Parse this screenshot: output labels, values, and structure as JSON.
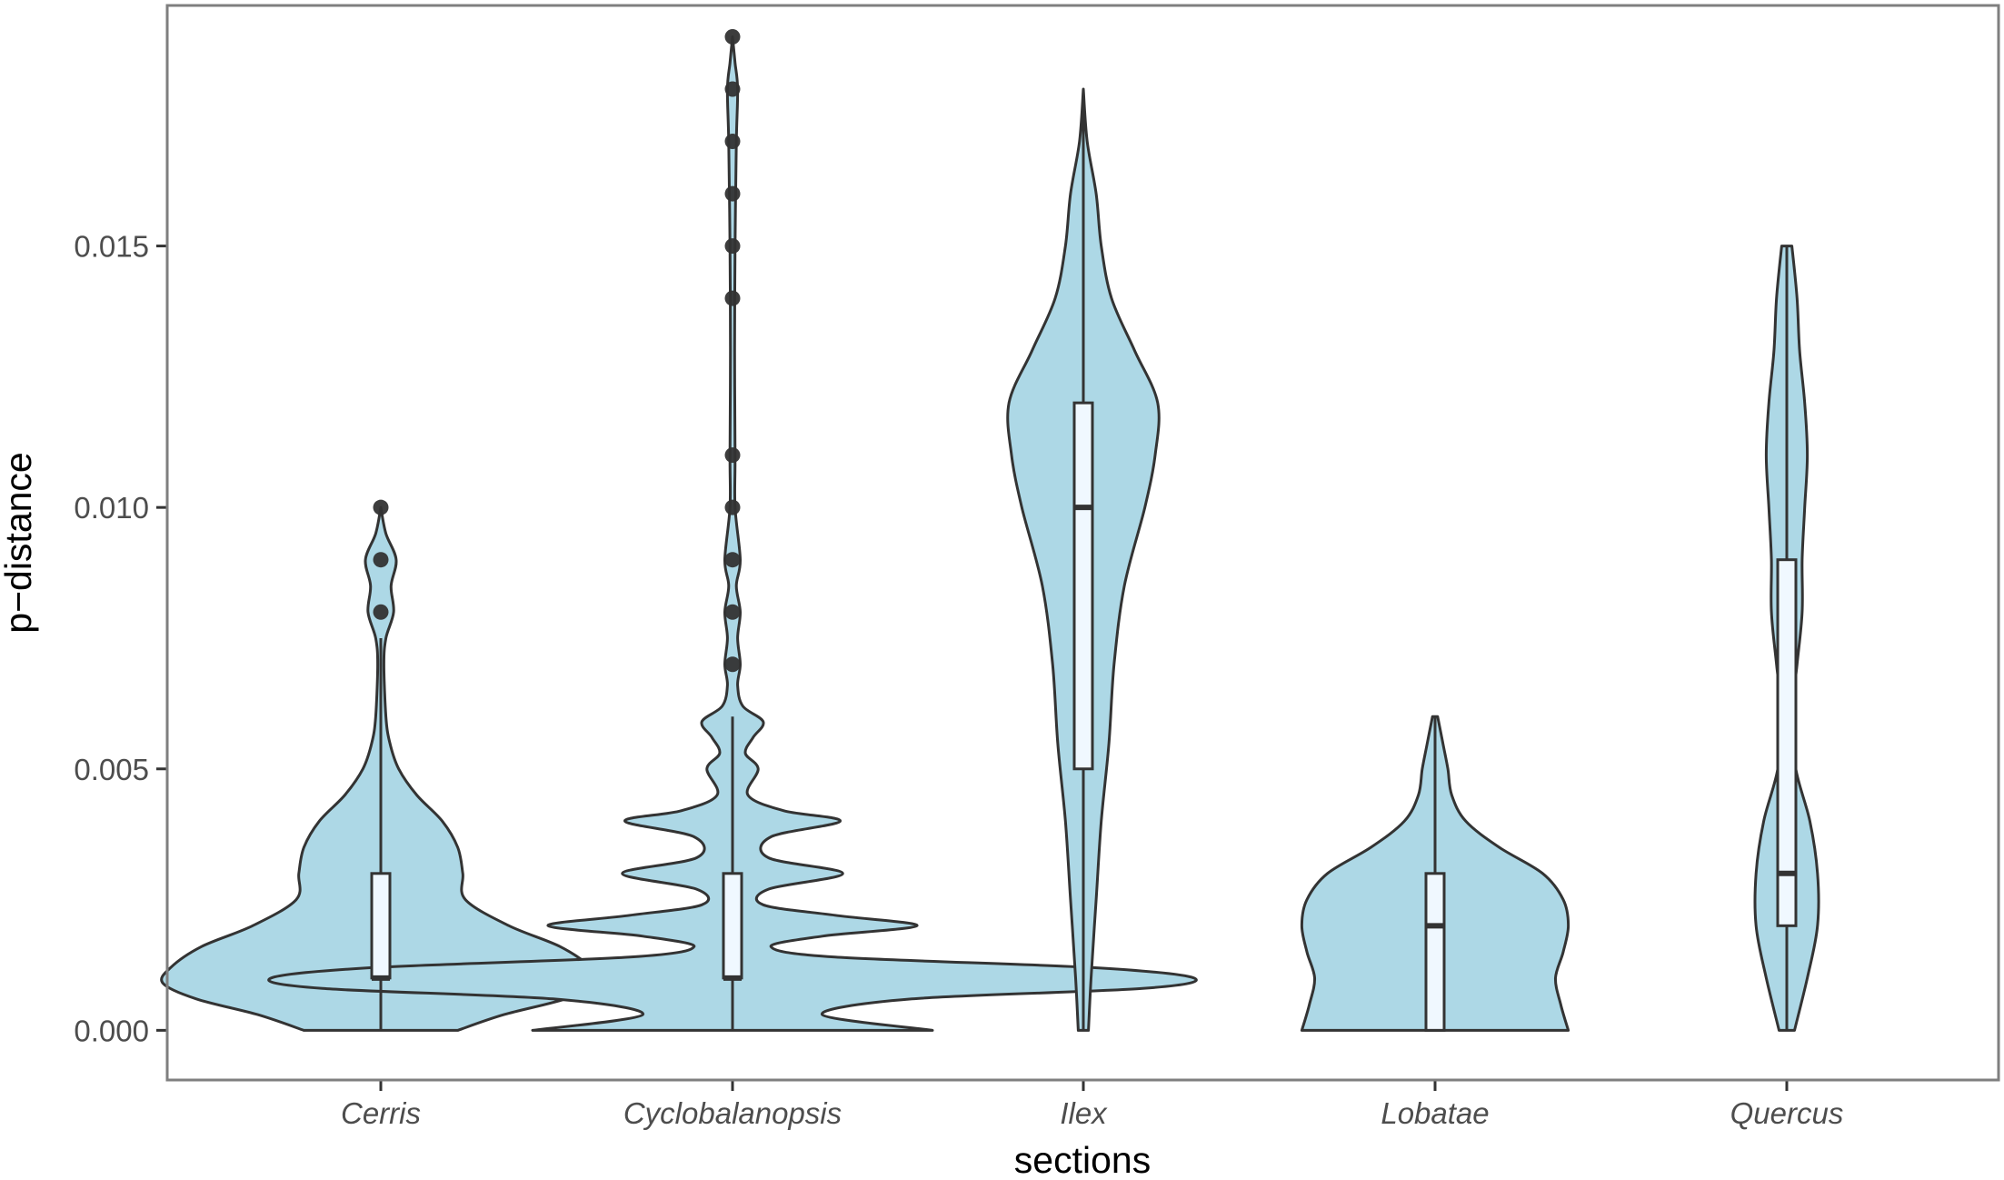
{
  "chart_data": {
    "type": "violin",
    "title": "",
    "xlabel": "sections",
    "ylabel": "p−distance",
    "categories": [
      "Cerris",
      "Cyclobalanopsis",
      "Ilex",
      "Lobatae",
      "Quercus"
    ],
    "y_ticks": [
      0.0,
      0.005,
      0.01,
      0.015
    ],
    "y_tick_labels": [
      "0.000",
      "0.005",
      "0.010",
      "0.015"
    ],
    "ylim": [
      -0.00095,
      0.0196
    ],
    "grid": false,
    "legend": "none",
    "colors": {
      "fill": "#add8e6",
      "stroke": "#333333",
      "box_fill": "#f0f8ff",
      "panel_border": "#7f7f7f"
    },
    "groups": [
      {
        "name": "Cerris",
        "box": {
          "lower_whisker": 0.0,
          "q1": 0.001,
          "median": 0.001,
          "q3": 0.003,
          "upper_whisker": 0.0075
        },
        "outliers": [
          0.008,
          0.009,
          0.01
        ],
        "density": [
          [
            0.0,
            0.3
          ],
          [
            0.0003,
            0.48
          ],
          [
            0.0006,
            0.72
          ],
          [
            0.0009,
            0.85
          ],
          [
            0.0012,
            0.82
          ],
          [
            0.0016,
            0.7
          ],
          [
            0.002,
            0.5
          ],
          [
            0.0025,
            0.33
          ],
          [
            0.003,
            0.32
          ],
          [
            0.0035,
            0.3
          ],
          [
            0.004,
            0.24
          ],
          [
            0.0045,
            0.14
          ],
          [
            0.005,
            0.07
          ],
          [
            0.0055,
            0.035
          ],
          [
            0.006,
            0.02
          ],
          [
            0.007,
            0.012
          ],
          [
            0.0075,
            0.02
          ],
          [
            0.008,
            0.05
          ],
          [
            0.0085,
            0.04
          ],
          [
            0.009,
            0.06
          ],
          [
            0.0095,
            0.02
          ],
          [
            0.01,
            0.0
          ]
        ]
      },
      {
        "name": "Cyclobalanopsis",
        "box": {
          "lower_whisker": 0.0,
          "q1": 0.001,
          "median": 0.001,
          "q3": 0.003,
          "upper_whisker": 0.006
        },
        "outliers": [
          0.007,
          0.008,
          0.009,
          0.01,
          0.011,
          0.014,
          0.015,
          0.016,
          0.017,
          0.018,
          0.019
        ],
        "density": [
          [
            0.0,
            0.78
          ],
          [
            0.0003,
            0.35
          ],
          [
            0.0006,
            0.7
          ],
          [
            0.0008,
            1.6
          ],
          [
            0.001,
            1.8
          ],
          [
            0.0012,
            1.4
          ],
          [
            0.0014,
            0.4
          ],
          [
            0.0016,
            0.15
          ],
          [
            0.0018,
            0.35
          ],
          [
            0.002,
            0.72
          ],
          [
            0.0022,
            0.4
          ],
          [
            0.0024,
            0.12
          ],
          [
            0.0027,
            0.14
          ],
          [
            0.003,
            0.43
          ],
          [
            0.0033,
            0.14
          ],
          [
            0.0037,
            0.15
          ],
          [
            0.004,
            0.42
          ],
          [
            0.0042,
            0.2
          ],
          [
            0.0045,
            0.06
          ],
          [
            0.005,
            0.1
          ],
          [
            0.0053,
            0.05
          ],
          [
            0.0056,
            0.08
          ],
          [
            0.0059,
            0.12
          ],
          [
            0.0062,
            0.04
          ],
          [
            0.0066,
            0.02
          ],
          [
            0.007,
            0.03
          ],
          [
            0.0075,
            0.02
          ],
          [
            0.008,
            0.03
          ],
          [
            0.0085,
            0.015
          ],
          [
            0.009,
            0.03
          ],
          [
            0.01,
            0.01
          ],
          [
            0.011,
            0.01
          ],
          [
            0.013,
            0.008
          ],
          [
            0.015,
            0.01
          ],
          [
            0.017,
            0.015
          ],
          [
            0.018,
            0.02
          ],
          [
            0.0185,
            0.01
          ],
          [
            0.019,
            0.0
          ]
        ]
      },
      {
        "name": "Ilex",
        "box": {
          "lower_whisker": 0.0,
          "q1": 0.005,
          "median": 0.01,
          "q3": 0.012,
          "upper_whisker": 0.018
        },
        "outliers": [],
        "density": [
          [
            0.0,
            0.02
          ],
          [
            0.001,
            0.03
          ],
          [
            0.0025,
            0.05
          ],
          [
            0.004,
            0.07
          ],
          [
            0.0055,
            0.1
          ],
          [
            0.007,
            0.12
          ],
          [
            0.0085,
            0.16
          ],
          [
            0.01,
            0.24
          ],
          [
            0.011,
            0.28
          ],
          [
            0.012,
            0.29
          ],
          [
            0.013,
            0.2
          ],
          [
            0.014,
            0.11
          ],
          [
            0.015,
            0.07
          ],
          [
            0.016,
            0.05
          ],
          [
            0.017,
            0.015
          ],
          [
            0.018,
            0.0
          ]
        ]
      },
      {
        "name": "Lobatae",
        "box": {
          "lower_whisker": 0.0,
          "q1": 0.0,
          "median": 0.002,
          "q3": 0.003,
          "upper_whisker": 0.006
        },
        "outliers": [],
        "density": [
          [
            0.0,
            0.52
          ],
          [
            0.0005,
            0.49
          ],
          [
            0.001,
            0.47
          ],
          [
            0.0015,
            0.5
          ],
          [
            0.002,
            0.52
          ],
          [
            0.0025,
            0.5
          ],
          [
            0.003,
            0.42
          ],
          [
            0.0035,
            0.25
          ],
          [
            0.004,
            0.12
          ],
          [
            0.0045,
            0.065
          ],
          [
            0.005,
            0.05
          ],
          [
            0.0055,
            0.03
          ],
          [
            0.006,
            0.01
          ]
        ]
      },
      {
        "name": "Quercus",
        "box": {
          "lower_whisker": 0.0,
          "q1": 0.002,
          "median": 0.003,
          "q3": 0.009,
          "upper_whisker": 0.015
        },
        "outliers": [],
        "density": [
          [
            0.0,
            0.03
          ],
          [
            0.001,
            0.08
          ],
          [
            0.002,
            0.12
          ],
          [
            0.003,
            0.12
          ],
          [
            0.004,
            0.09
          ],
          [
            0.005,
            0.035
          ],
          [
            0.006,
            0.02
          ],
          [
            0.007,
            0.04
          ],
          [
            0.008,
            0.06
          ],
          [
            0.009,
            0.06
          ],
          [
            0.01,
            0.07
          ],
          [
            0.011,
            0.08
          ],
          [
            0.012,
            0.07
          ],
          [
            0.013,
            0.05
          ],
          [
            0.014,
            0.04
          ],
          [
            0.015,
            0.02
          ]
        ]
      }
    ]
  }
}
